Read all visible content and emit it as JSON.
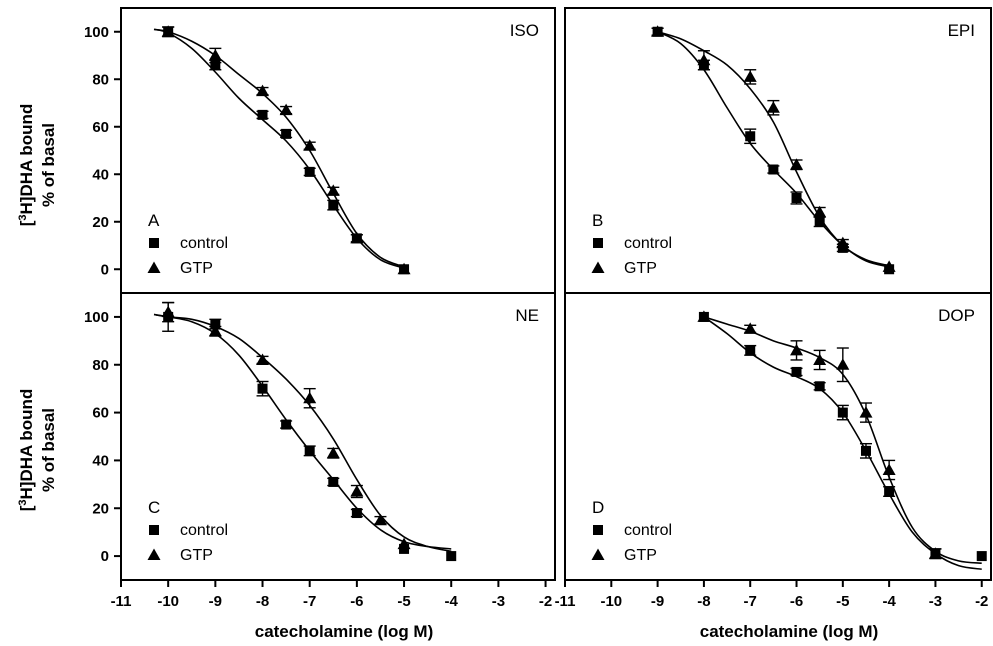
{
  "figure": {
    "ylabel_line1": "[",
    "ylabel_sup": "3",
    "ylabel_line1_rest": "H]DHA bound",
    "ylabel_line2": "% of basal",
    "xlabel": "catecholamine (log M)"
  },
  "chart_data": [
    {
      "type": "scatter",
      "panel": "top-left",
      "title": "ISO",
      "letter": "A",
      "xlim": [
        -11,
        -1.8
      ],
      "ylim": [
        -10,
        110
      ],
      "xticks": [
        -11,
        -10,
        -9,
        -8,
        -7,
        -6,
        -5,
        -4,
        -3,
        -2
      ],
      "yticks": [
        0,
        20,
        40,
        60,
        80,
        100
      ],
      "legend_placement": "bottom-left",
      "series": [
        {
          "name": "control",
          "marker": "square",
          "x": [
            -10,
            -9,
            -8,
            -7.5,
            -7,
            -6.5,
            -6,
            -5
          ],
          "y": [
            100,
            86,
            65,
            57,
            41,
            27,
            13,
            0
          ],
          "err": [
            2,
            2,
            1.5,
            1.5,
            1.5,
            2,
            1.5,
            1
          ],
          "curve_x": [
            -10.3,
            -10,
            -9.5,
            -9,
            -8.5,
            -8,
            -7.5,
            -7,
            -6.5,
            -6,
            -5.5,
            -5
          ],
          "curve_y": [
            101,
            99.5,
            93,
            83,
            72,
            63,
            54,
            42,
            27,
            13,
            4,
            0.5
          ]
        },
        {
          "name": "GTP",
          "marker": "triangle",
          "x": [
            -10,
            -9,
            -8,
            -7.5,
            -7,
            -6.5,
            -6,
            -5
          ],
          "y": [
            100,
            90,
            75,
            67,
            52,
            33,
            13,
            0
          ],
          "err": [
            2,
            3,
            1.5,
            1.5,
            1.5,
            1.5,
            1.5,
            1
          ],
          "curve_x": [
            -10.3,
            -10,
            -9.5,
            -9,
            -8.5,
            -8,
            -7.5,
            -7,
            -6.5,
            -6,
            -5.5,
            -5
          ],
          "curve_y": [
            101,
            100,
            96,
            90,
            82,
            74,
            64,
            50,
            32,
            15,
            5,
            1
          ]
        }
      ]
    },
    {
      "type": "scatter",
      "panel": "top-right",
      "title": "EPI",
      "letter": "B",
      "xlim": [
        -11,
        -1.8
      ],
      "ylim": [
        -10,
        110
      ],
      "xticks": [
        -11,
        -10,
        -9,
        -8,
        -7,
        -6,
        -5,
        -4,
        -3,
        -2
      ],
      "yticks": [
        0,
        20,
        40,
        60,
        80,
        100
      ],
      "legend_placement": "bottom-left",
      "series": [
        {
          "name": "control",
          "marker": "square",
          "x": [
            -9,
            -8,
            -7,
            -6.5,
            -6,
            -5.5,
            -5,
            -4
          ],
          "y": [
            100,
            86,
            56,
            42,
            30,
            20,
            9,
            0
          ],
          "err": [
            1.5,
            2,
            3,
            1.5,
            2.5,
            2,
            1.5,
            1
          ],
          "curve_x": [
            -9,
            -8.5,
            -8,
            -7.5,
            -7,
            -6.5,
            -6,
            -5.5,
            -5,
            -4.5,
            -4
          ],
          "curve_y": [
            100,
            95,
            84,
            68,
            53,
            42,
            32,
            20,
            10,
            3.5,
            1
          ]
        },
        {
          "name": "GTP",
          "marker": "triangle",
          "x": [
            -9,
            -8,
            -7,
            -6.5,
            -6,
            -5.5,
            -5,
            -4
          ],
          "y": [
            100,
            88,
            81,
            68,
            44,
            24,
            11,
            1
          ],
          "err": [
            1.5,
            4,
            3,
            3,
            2,
            2,
            1.5,
            1
          ],
          "curve_x": [
            -9,
            -8.5,
            -8,
            -7.5,
            -7,
            -6.5,
            -6,
            -5.5,
            -5,
            -4.5,
            -4
          ],
          "curve_y": [
            100,
            97,
            92,
            86,
            76,
            62,
            41,
            22,
            10,
            4,
            1.5
          ]
        }
      ]
    },
    {
      "type": "scatter",
      "panel": "bottom-left",
      "title": "NE",
      "letter": "C",
      "xlim": [
        -11,
        -1.8
      ],
      "ylim": [
        -10,
        110
      ],
      "xticks": [
        -11,
        -10,
        -9,
        -8,
        -7,
        -6,
        -5,
        -4,
        -3,
        -2
      ],
      "yticks": [
        0,
        20,
        40,
        60,
        80,
        100
      ],
      "legend_placement": "bottom-left",
      "series": [
        {
          "name": "control",
          "marker": "square",
          "x": [
            -10,
            -9,
            -8,
            -7.5,
            -7,
            -6.5,
            -6,
            -5,
            -4
          ],
          "y": [
            100,
            97,
            70,
            55,
            44,
            31,
            18,
            3,
            0
          ],
          "err": [
            6,
            2,
            3,
            1.5,
            2,
            1.5,
            1.5,
            1,
            1
          ],
          "curve_x": [
            -10.3,
            -10,
            -9.5,
            -9,
            -8.5,
            -8,
            -7.5,
            -7,
            -6.5,
            -6,
            -5.5,
            -5,
            -4.5,
            -4
          ],
          "curve_y": [
            101,
            100,
            98,
            93,
            84,
            71,
            57,
            44,
            32,
            20,
            11,
            6,
            4,
            3
          ]
        },
        {
          "name": "GTP",
          "marker": "triangle",
          "x": [
            -10,
            -9,
            -8,
            -7,
            -6.5,
            -6,
            -5.5,
            -5
          ],
          "y": [
            102,
            94,
            82,
            66,
            43,
            27,
            15,
            5
          ],
          "err": [
            4,
            2,
            1.5,
            4,
            2,
            2.5,
            1.5,
            1
          ],
          "curve_x": [
            -10.3,
            -10,
            -9.5,
            -9,
            -8.5,
            -8,
            -7.5,
            -7,
            -6.5,
            -6,
            -5.5,
            -5,
            -4.5,
            -4
          ],
          "curve_y": [
            101,
            100,
            99,
            96,
            91,
            83,
            74,
            63,
            49,
            32,
            17,
            8,
            4,
            2
          ]
        }
      ]
    },
    {
      "type": "scatter",
      "panel": "bottom-right",
      "title": "DOP",
      "letter": "D",
      "xlim": [
        -11,
        -1.8
      ],
      "ylim": [
        -10,
        110
      ],
      "xticks": [
        -11,
        -10,
        -9,
        -8,
        -7,
        -6,
        -5,
        -4,
        -3,
        -2
      ],
      "yticks": [
        0,
        20,
        40,
        60,
        80,
        100
      ],
      "legend_placement": "bottom-left",
      "series": [
        {
          "name": "control",
          "marker": "square",
          "x": [
            -8,
            -7,
            -6,
            -5.5,
            -5,
            -4.5,
            -4,
            -3,
            -2
          ],
          "y": [
            100,
            86,
            77,
            71,
            60,
            44,
            27,
            1,
            0
          ],
          "err": [
            1,
            2,
            1.5,
            1.5,
            3,
            3,
            2,
            2,
            1
          ],
          "curve_x": [
            -8,
            -7.5,
            -7,
            -6.5,
            -6,
            -5.5,
            -5,
            -4.5,
            -4,
            -3.5,
            -3,
            -2.5,
            -2
          ],
          "curve_y": [
            100,
            93,
            85,
            79,
            75,
            70,
            60,
            44,
            26,
            10,
            1,
            -4,
            -5.5
          ]
        },
        {
          "name": "GTP",
          "marker": "triangle",
          "x": [
            -8,
            -7,
            -6,
            -5.5,
            -5,
            -4.5,
            -4,
            -3
          ],
          "y": [
            100,
            95,
            86,
            82,
            80,
            60,
            36,
            1
          ],
          "err": [
            1,
            1.5,
            4,
            4,
            7,
            4,
            4,
            2
          ],
          "curve_x": [
            -8,
            -7.5,
            -7,
            -6.5,
            -6,
            -5.5,
            -5,
            -4.5,
            -4,
            -3.5,
            -3,
            -2.5,
            -2
          ],
          "curve_y": [
            100,
            97,
            94,
            90,
            87,
            83,
            76,
            59,
            33,
            12,
            2,
            -2,
            -3
          ]
        }
      ]
    }
  ]
}
